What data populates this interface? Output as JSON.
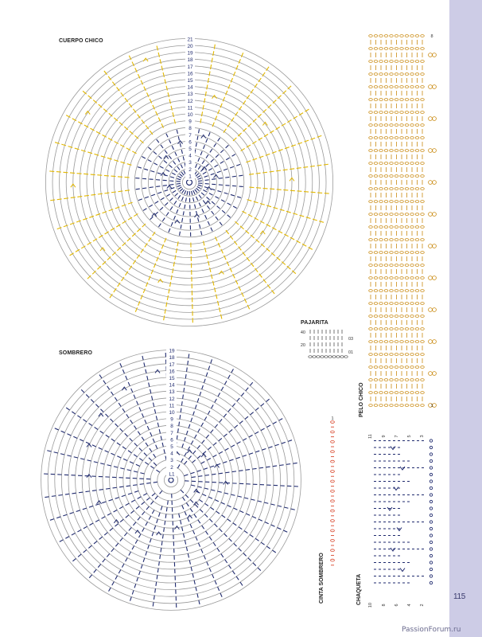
{
  "page": {
    "number": "115",
    "watermark": "PassionForum.ru"
  },
  "cuerpo_chico": {
    "title": "CUERPO CHICO",
    "round_labels": [
      "1",
      "2",
      "3",
      "4",
      "5",
      "6",
      "7",
      "8",
      "9",
      "10",
      "11",
      "12",
      "13",
      "14",
      "15",
      "16",
      "17",
      "18",
      "19",
      "20",
      "21"
    ],
    "colors": {
      "ring": "#9a9a9a",
      "dark_stitch": "#1f2a6e",
      "light_stitch": "#e3b800"
    }
  },
  "sombrero": {
    "title": "SOMBRERO",
    "round_labels": [
      "L1",
      "2",
      "3",
      "4",
      "5",
      "6",
      "7",
      "8",
      "9",
      "10",
      "11",
      "12",
      "13",
      "14",
      "15",
      "16",
      "17",
      "18",
      "19"
    ],
    "colors": {
      "ring": "#9a9a9a",
      "stitch": "#1f2a6e"
    }
  },
  "pajarita": {
    "title": "PAJARITA",
    "labels": {
      "top_left": "40",
      "mid_left": "20",
      "right_top": "03",
      "right_bottom": "01"
    },
    "colors": {
      "stitch": "#555555"
    }
  },
  "pelo_chico": {
    "title": "PELO CHICO",
    "labels": {
      "top": "8",
      "bottom": "1"
    },
    "colors": {
      "stitch": "#c98a10"
    }
  },
  "cinta_sombrero": {
    "title": "CINTA SOMBRERO",
    "labels": {
      "top": "1"
    },
    "colors": {
      "stitch": "#d8452a"
    }
  },
  "chaqueta": {
    "title": "CHAQUETA",
    "top_labels": [
      "11",
      "9",
      "7",
      "5",
      "3"
    ],
    "bottom_labels": [
      "10",
      "8",
      "6",
      "4",
      "2"
    ],
    "colors": {
      "stitch": "#1f2a6e"
    }
  }
}
